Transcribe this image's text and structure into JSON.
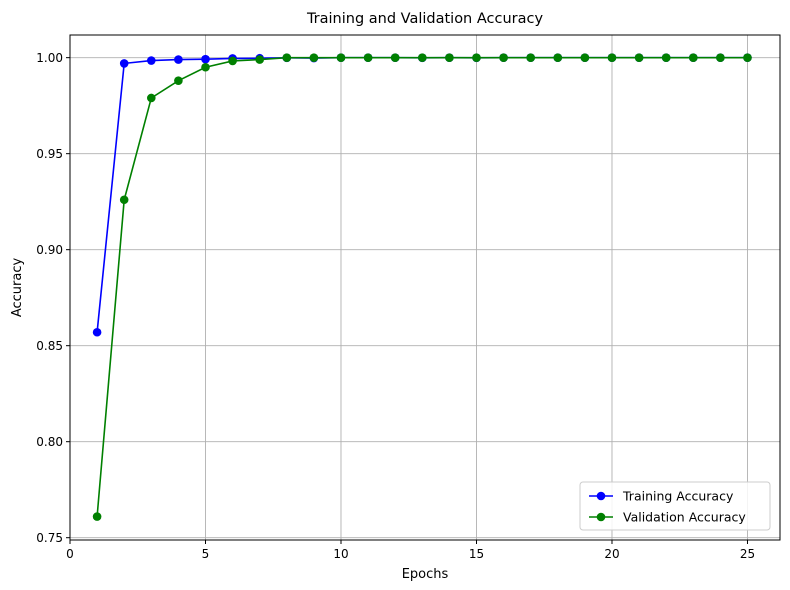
{
  "chart_data": {
    "type": "line",
    "title": "Training and Validation Accuracy",
    "xlabel": "Epochs",
    "ylabel": "Accuracy",
    "xlim": [
      0,
      26.2
    ],
    "ylim": [
      0.7488,
      1.0118
    ],
    "xticks": [
      0,
      5,
      10,
      15,
      20,
      25
    ],
    "yticks": [
      0.75,
      0.8,
      0.85,
      0.9,
      0.95,
      1.0
    ],
    "ytick_labels": [
      "0.75",
      "0.80",
      "0.85",
      "0.90",
      "0.95",
      "1.00"
    ],
    "grid": true,
    "legend_position": "lower-right",
    "x": [
      1,
      2,
      3,
      4,
      5,
      6,
      7,
      8,
      9,
      10,
      11,
      12,
      13,
      14,
      15,
      16,
      17,
      18,
      19,
      20,
      21,
      22,
      23,
      24,
      25
    ],
    "series": [
      {
        "name": "Training Accuracy",
        "color": "#0000ff",
        "marker": "circle",
        "values": [
          0.857,
          0.997,
          0.9985,
          0.999,
          0.9992,
          0.9996,
          0.9997,
          0.9999,
          0.9998,
          1.0,
          1.0,
          1.0,
          0.9999,
          1.0,
          0.9999,
          1.0,
          1.0,
          1.0,
          1.0,
          1.0,
          1.0,
          1.0,
          1.0,
          1.0,
          1.0
        ]
      },
      {
        "name": "Validation Accuracy",
        "color": "#008000",
        "marker": "circle",
        "values": [
          0.761,
          0.926,
          0.979,
          0.988,
          0.995,
          0.9983,
          0.999,
          1.0,
          1.0,
          1.0,
          1.0,
          1.0,
          1.0,
          1.0,
          1.0,
          1.0,
          1.0,
          1.0,
          1.0,
          1.0,
          1.0,
          1.0,
          1.0,
          1.0,
          1.0
        ]
      }
    ]
  }
}
